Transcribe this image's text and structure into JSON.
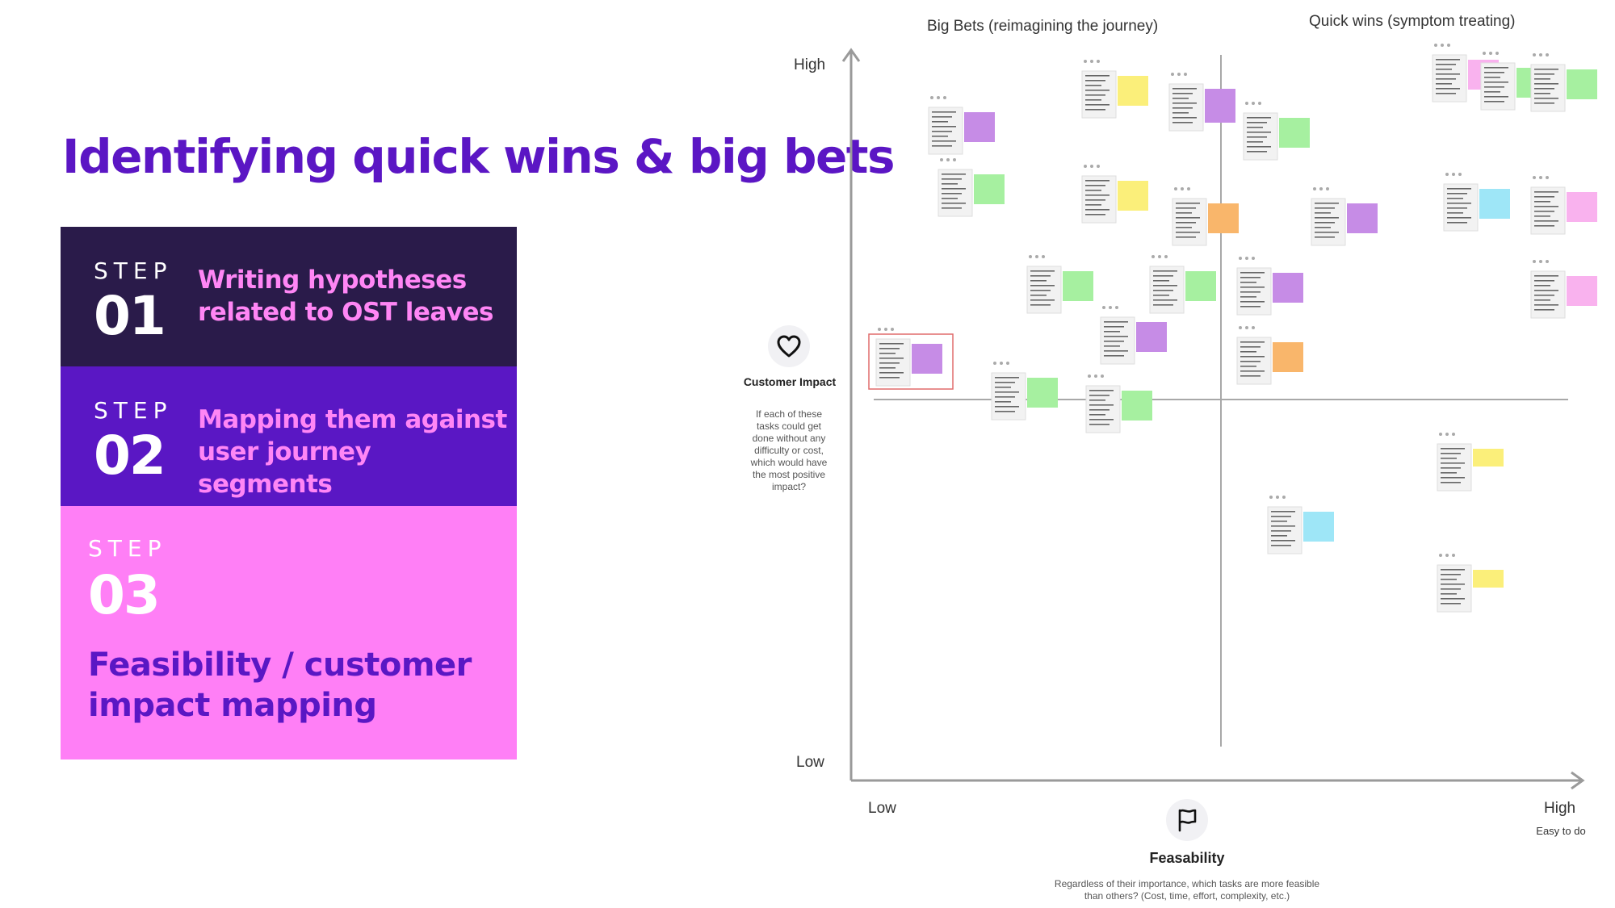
{
  "slide": {
    "title": "Identifying quick wins & big bets"
  },
  "steps": [
    {
      "word": "STEP",
      "number": "01",
      "description": "Writing hypotheses related to OST leaves",
      "bg": "#2a1b4a"
    },
    {
      "word": "STEP",
      "number": "02",
      "description": "Mapping them against user journey segments",
      "bg": "#5a17c4"
    },
    {
      "word": "STEP",
      "number": "03",
      "description": "Feasibility / customer impact mapping",
      "bg": "#ff7ff6"
    }
  ],
  "matrix": {
    "quadrant_left_title": "Big Bets (reimagining the journey)",
    "quadrant_right_title": "Quick wins (symptom treating)",
    "y_axis": {
      "high": "High",
      "low": "Low",
      "name": "Customer Impact",
      "question": "If each of these tasks could get done without any difficulty or cost, which would have the most positive impact?",
      "icon": "heart-icon"
    },
    "x_axis": {
      "low": "Low",
      "high": "High",
      "high_note": "Easy to do",
      "name": "Feasability",
      "question": "Regardless of their importance, which tasks are more feasible than others? (Cost, time, effort, complexity, etc.)",
      "icon": "flag-icon"
    }
  },
  "colors": {
    "title": "#5b16c4",
    "step_accent": "#ff86f5",
    "sticky_purple": "#c68ce6",
    "sticky_green": "#a6f0a0",
    "sticky_yellow": "#fbef7a",
    "sticky_orange": "#f9b66b",
    "sticky_pink": "#f9b2ee",
    "sticky_blue": "#9ee6f7",
    "card": "#f2f2f2",
    "highlight": "#e06c6c"
  }
}
